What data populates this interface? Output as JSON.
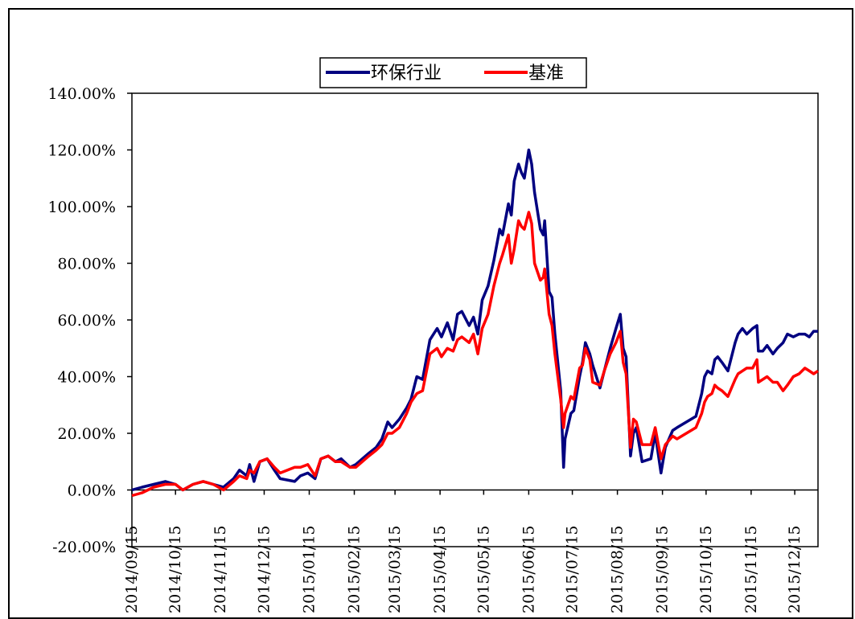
{
  "chart_data": {
    "type": "line",
    "title": "",
    "xlabel": "",
    "ylabel": "",
    "ylim": [
      -0.2,
      1.4
    ],
    "y_ticks": [
      -0.2,
      0.0,
      0.2,
      0.4,
      0.6,
      0.8,
      1.0,
      1.2,
      1.4
    ],
    "y_tick_labels": [
      "-20.00%",
      "0.00%",
      "20.00%",
      "40.00%",
      "60.00%",
      "80.00%",
      "100.00%",
      "120.00%",
      "140.00%"
    ],
    "x_tick_labels": [
      "2014/09/15",
      "2014/10/15",
      "2014/11/15",
      "2014/12/15",
      "2015/01/15",
      "2015/02/15",
      "2015/03/15",
      "2015/04/15",
      "2015/05/15",
      "2015/06/15",
      "2015/07/15",
      "2015/08/15",
      "2015/09/15",
      "2015/10/15",
      "2015/11/15",
      "2015/12/15"
    ],
    "x_tick_dates": [
      "2014-09-15",
      "2014-10-15",
      "2014-11-15",
      "2014-12-15",
      "2015-01-15",
      "2015-02-15",
      "2015-03-15",
      "2015-04-15",
      "2015-05-15",
      "2015-06-15",
      "2015-07-15",
      "2015-08-15",
      "2015-09-15",
      "2015-10-15",
      "2015-11-15",
      "2015-12-15"
    ],
    "x_range": [
      "2014-09-15",
      "2015-12-31"
    ],
    "legend_position": "top-center",
    "grid": false,
    "series": [
      {
        "name": "环保行业",
        "color": "#000080",
        "points": [
          [
            "2014-09-15",
            0.0
          ],
          [
            "2014-09-22",
            0.01
          ],
          [
            "2014-09-30",
            0.02
          ],
          [
            "2014-10-08",
            0.03
          ],
          [
            "2014-10-15",
            0.02
          ],
          [
            "2014-10-20",
            0.0
          ],
          [
            "2014-10-27",
            0.02
          ],
          [
            "2014-11-03",
            0.03
          ],
          [
            "2014-11-10",
            0.02
          ],
          [
            "2014-11-17",
            0.01
          ],
          [
            "2014-11-24",
            0.04
          ],
          [
            "2014-11-28",
            0.07
          ],
          [
            "2014-12-03",
            0.05
          ],
          [
            "2014-12-05",
            0.09
          ],
          [
            "2014-12-08",
            0.03
          ],
          [
            "2014-12-12",
            0.1
          ],
          [
            "2014-12-17",
            0.11
          ],
          [
            "2014-12-22",
            0.07
          ],
          [
            "2014-12-26",
            0.04
          ],
          [
            "2015-01-05",
            0.03
          ],
          [
            "2015-01-09",
            0.05
          ],
          [
            "2015-01-14",
            0.06
          ],
          [
            "2015-01-19",
            0.04
          ],
          [
            "2015-01-23",
            0.11
          ],
          [
            "2015-01-28",
            0.12
          ],
          [
            "2015-02-02",
            0.1
          ],
          [
            "2015-02-06",
            0.11
          ],
          [
            "2015-02-12",
            0.08
          ],
          [
            "2015-02-16",
            0.09
          ],
          [
            "2015-02-25",
            0.13
          ],
          [
            "2015-03-02",
            0.15
          ],
          [
            "2015-03-06",
            0.18
          ],
          [
            "2015-03-10",
            0.24
          ],
          [
            "2015-03-13",
            0.22
          ],
          [
            "2015-03-18",
            0.25
          ],
          [
            "2015-03-23",
            0.29
          ],
          [
            "2015-03-26",
            0.32
          ],
          [
            "2015-03-30",
            0.4
          ],
          [
            "2015-04-03",
            0.39
          ],
          [
            "2015-04-08",
            0.53
          ],
          [
            "2015-04-13",
            0.57
          ],
          [
            "2015-04-16",
            0.54
          ],
          [
            "2015-04-20",
            0.59
          ],
          [
            "2015-04-24",
            0.53
          ],
          [
            "2015-04-27",
            0.62
          ],
          [
            "2015-04-30",
            0.63
          ],
          [
            "2015-05-05",
            0.58
          ],
          [
            "2015-05-08",
            0.61
          ],
          [
            "2015-05-11",
            0.55
          ],
          [
            "2015-05-14",
            0.67
          ],
          [
            "2015-05-18",
            0.72
          ],
          [
            "2015-05-22",
            0.81
          ],
          [
            "2015-05-26",
            0.92
          ],
          [
            "2015-05-28",
            0.9
          ],
          [
            "2015-06-01",
            1.01
          ],
          [
            "2015-06-03",
            0.97
          ],
          [
            "2015-06-05",
            1.09
          ],
          [
            "2015-06-08",
            1.15
          ],
          [
            "2015-06-10",
            1.12
          ],
          [
            "2015-06-12",
            1.1
          ],
          [
            "2015-06-15",
            1.2
          ],
          [
            "2015-06-17",
            1.15
          ],
          [
            "2015-06-19",
            1.05
          ],
          [
            "2015-06-23",
            0.92
          ],
          [
            "2015-06-25",
            0.9
          ],
          [
            "2015-06-26",
            0.95
          ],
          [
            "2015-06-29",
            0.7
          ],
          [
            "2015-07-01",
            0.68
          ],
          [
            "2015-07-03",
            0.55
          ],
          [
            "2015-07-07",
            0.35
          ],
          [
            "2015-07-09",
            0.08
          ],
          [
            "2015-07-10",
            0.18
          ],
          [
            "2015-07-14",
            0.27
          ],
          [
            "2015-07-16",
            0.28
          ],
          [
            "2015-07-20",
            0.4
          ],
          [
            "2015-07-22",
            0.45
          ],
          [
            "2015-07-24",
            0.52
          ],
          [
            "2015-07-27",
            0.48
          ],
          [
            "2015-07-29",
            0.44
          ],
          [
            "2015-08-03",
            0.36
          ],
          [
            "2015-08-06",
            0.42
          ],
          [
            "2015-08-10",
            0.5
          ],
          [
            "2015-08-14",
            0.57
          ],
          [
            "2015-08-17",
            0.62
          ],
          [
            "2015-08-19",
            0.5
          ],
          [
            "2015-08-21",
            0.47
          ],
          [
            "2015-08-24",
            0.12
          ],
          [
            "2015-08-26",
            0.2
          ],
          [
            "2015-08-28",
            0.22
          ],
          [
            "2015-09-01",
            0.1
          ],
          [
            "2015-09-07",
            0.11
          ],
          [
            "2015-09-10",
            0.2
          ],
          [
            "2015-09-14",
            0.06
          ],
          [
            "2015-09-17",
            0.15
          ],
          [
            "2015-09-22",
            0.21
          ],
          [
            "2015-09-25",
            0.22
          ],
          [
            "2015-10-08",
            0.26
          ],
          [
            "2015-10-12",
            0.34
          ],
          [
            "2015-10-14",
            0.4
          ],
          [
            "2015-10-16",
            0.42
          ],
          [
            "2015-10-19",
            0.41
          ],
          [
            "2015-10-21",
            0.46
          ],
          [
            "2015-10-23",
            0.47
          ],
          [
            "2015-10-26",
            0.45
          ],
          [
            "2015-10-30",
            0.42
          ],
          [
            "2015-11-04",
            0.52
          ],
          [
            "2015-11-06",
            0.55
          ],
          [
            "2015-11-09",
            0.57
          ],
          [
            "2015-11-12",
            0.55
          ],
          [
            "2015-11-16",
            0.57
          ],
          [
            "2015-11-19",
            0.58
          ],
          [
            "2015-11-20",
            0.49
          ],
          [
            "2015-11-23",
            0.49
          ],
          [
            "2015-11-26",
            0.51
          ],
          [
            "2015-11-30",
            0.48
          ],
          [
            "2015-12-03",
            0.5
          ],
          [
            "2015-12-07",
            0.52
          ],
          [
            "2015-12-10",
            0.55
          ],
          [
            "2015-12-14",
            0.54
          ],
          [
            "2015-12-18",
            0.55
          ],
          [
            "2015-12-22",
            0.55
          ],
          [
            "2015-12-25",
            0.54
          ],
          [
            "2015-12-28",
            0.56
          ],
          [
            "2015-12-31",
            0.56
          ]
        ]
      },
      {
        "name": "基准",
        "color": "#ff0000",
        "points": [
          [
            "2014-09-15",
            -0.02
          ],
          [
            "2014-09-22",
            -0.01
          ],
          [
            "2014-09-30",
            0.01
          ],
          [
            "2014-10-08",
            0.02
          ],
          [
            "2014-10-15",
            0.02
          ],
          [
            "2014-10-20",
            0.0
          ],
          [
            "2014-10-27",
            0.02
          ],
          [
            "2014-11-03",
            0.03
          ],
          [
            "2014-11-10",
            0.02
          ],
          [
            "2014-11-17",
            0.0
          ],
          [
            "2014-11-24",
            0.03
          ],
          [
            "2014-11-28",
            0.05
          ],
          [
            "2014-12-03",
            0.04
          ],
          [
            "2014-12-05",
            0.07
          ],
          [
            "2014-12-08",
            0.06
          ],
          [
            "2014-12-12",
            0.1
          ],
          [
            "2014-12-17",
            0.11
          ],
          [
            "2014-12-22",
            0.08
          ],
          [
            "2014-12-26",
            0.06
          ],
          [
            "2015-01-05",
            0.08
          ],
          [
            "2015-01-09",
            0.08
          ],
          [
            "2015-01-14",
            0.09
          ],
          [
            "2015-01-19",
            0.05
          ],
          [
            "2015-01-23",
            0.11
          ],
          [
            "2015-01-28",
            0.12
          ],
          [
            "2015-02-02",
            0.1
          ],
          [
            "2015-02-06",
            0.1
          ],
          [
            "2015-02-12",
            0.08
          ],
          [
            "2015-02-16",
            0.08
          ],
          [
            "2015-02-25",
            0.12
          ],
          [
            "2015-03-02",
            0.14
          ],
          [
            "2015-03-06",
            0.16
          ],
          [
            "2015-03-10",
            0.2
          ],
          [
            "2015-03-13",
            0.2
          ],
          [
            "2015-03-18",
            0.22
          ],
          [
            "2015-03-23",
            0.27
          ],
          [
            "2015-03-26",
            0.31
          ],
          [
            "2015-03-30",
            0.34
          ],
          [
            "2015-04-03",
            0.35
          ],
          [
            "2015-04-08",
            0.48
          ],
          [
            "2015-04-13",
            0.5
          ],
          [
            "2015-04-16",
            0.47
          ],
          [
            "2015-04-20",
            0.5
          ],
          [
            "2015-04-24",
            0.49
          ],
          [
            "2015-04-27",
            0.53
          ],
          [
            "2015-04-30",
            0.54
          ],
          [
            "2015-05-05",
            0.52
          ],
          [
            "2015-05-08",
            0.55
          ],
          [
            "2015-05-11",
            0.48
          ],
          [
            "2015-05-14",
            0.57
          ],
          [
            "2015-05-18",
            0.62
          ],
          [
            "2015-05-22",
            0.72
          ],
          [
            "2015-05-26",
            0.8
          ],
          [
            "2015-05-28",
            0.83
          ],
          [
            "2015-06-01",
            0.9
          ],
          [
            "2015-06-03",
            0.8
          ],
          [
            "2015-06-05",
            0.85
          ],
          [
            "2015-06-08",
            0.95
          ],
          [
            "2015-06-10",
            0.93
          ],
          [
            "2015-06-12",
            0.92
          ],
          [
            "2015-06-15",
            0.98
          ],
          [
            "2015-06-17",
            0.94
          ],
          [
            "2015-06-19",
            0.8
          ],
          [
            "2015-06-23",
            0.74
          ],
          [
            "2015-06-25",
            0.75
          ],
          [
            "2015-06-26",
            0.78
          ],
          [
            "2015-06-29",
            0.62
          ],
          [
            "2015-07-01",
            0.58
          ],
          [
            "2015-07-03",
            0.48
          ],
          [
            "2015-07-07",
            0.32
          ],
          [
            "2015-07-09",
            0.22
          ],
          [
            "2015-07-10",
            0.27
          ],
          [
            "2015-07-14",
            0.33
          ],
          [
            "2015-07-16",
            0.32
          ],
          [
            "2015-07-20",
            0.43
          ],
          [
            "2015-07-22",
            0.44
          ],
          [
            "2015-07-24",
            0.5
          ],
          [
            "2015-07-27",
            0.46
          ],
          [
            "2015-07-29",
            0.38
          ],
          [
            "2015-08-03",
            0.37
          ],
          [
            "2015-08-06",
            0.42
          ],
          [
            "2015-08-10",
            0.48
          ],
          [
            "2015-08-14",
            0.52
          ],
          [
            "2015-08-17",
            0.56
          ],
          [
            "2015-08-19",
            0.45
          ],
          [
            "2015-08-21",
            0.41
          ],
          [
            "2015-08-24",
            0.15
          ],
          [
            "2015-08-26",
            0.25
          ],
          [
            "2015-08-28",
            0.24
          ],
          [
            "2015-09-01",
            0.16
          ],
          [
            "2015-09-07",
            0.16
          ],
          [
            "2015-09-10",
            0.22
          ],
          [
            "2015-09-14",
            0.11
          ],
          [
            "2015-09-17",
            0.16
          ],
          [
            "2015-09-22",
            0.19
          ],
          [
            "2015-09-25",
            0.18
          ],
          [
            "2015-10-08",
            0.22
          ],
          [
            "2015-10-12",
            0.27
          ],
          [
            "2015-10-14",
            0.31
          ],
          [
            "2015-10-16",
            0.33
          ],
          [
            "2015-10-19",
            0.34
          ],
          [
            "2015-10-21",
            0.37
          ],
          [
            "2015-10-23",
            0.36
          ],
          [
            "2015-10-26",
            0.35
          ],
          [
            "2015-10-30",
            0.33
          ],
          [
            "2015-11-04",
            0.39
          ],
          [
            "2015-11-06",
            0.41
          ],
          [
            "2015-11-09",
            0.42
          ],
          [
            "2015-11-12",
            0.43
          ],
          [
            "2015-11-16",
            0.43
          ],
          [
            "2015-11-19",
            0.46
          ],
          [
            "2015-11-20",
            0.38
          ],
          [
            "2015-11-23",
            0.39
          ],
          [
            "2015-11-26",
            0.4
          ],
          [
            "2015-11-30",
            0.38
          ],
          [
            "2015-12-03",
            0.38
          ],
          [
            "2015-12-07",
            0.35
          ],
          [
            "2015-12-10",
            0.37
          ],
          [
            "2015-12-14",
            0.4
          ],
          [
            "2015-12-18",
            0.41
          ],
          [
            "2015-12-22",
            0.43
          ],
          [
            "2015-12-25",
            0.42
          ],
          [
            "2015-12-28",
            0.41
          ],
          [
            "2015-12-31",
            0.42
          ]
        ]
      }
    ]
  }
}
